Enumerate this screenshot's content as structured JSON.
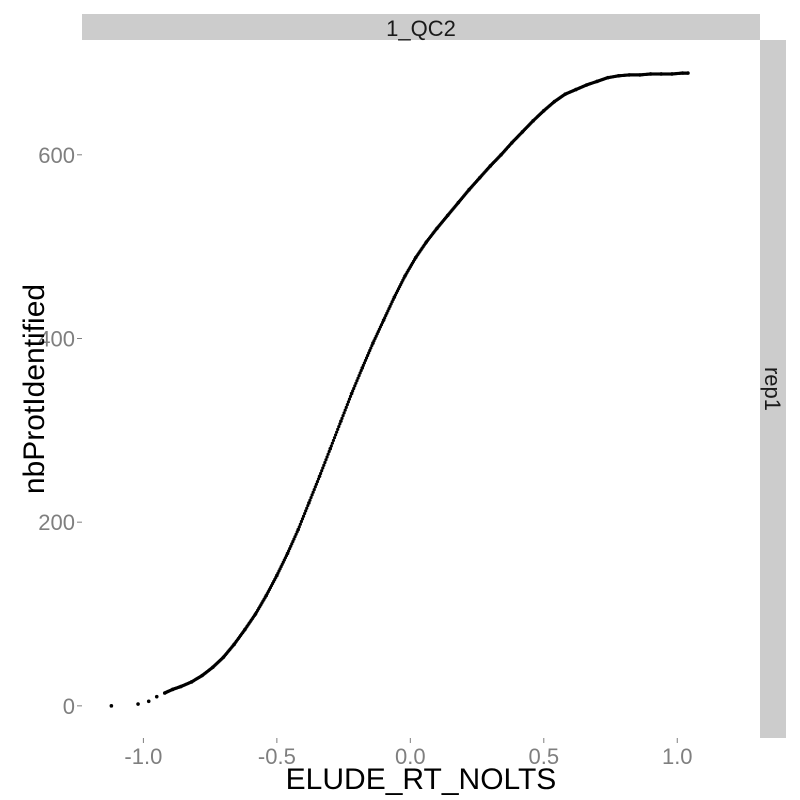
{
  "chart_data": {
    "type": "scatter",
    "title": "",
    "facet_column_label": "1_QC2",
    "facet_row_label": "rep1",
    "xlabel": "ELUDE_RT_NOLTS",
    "ylabel": "nbProtIdentified",
    "xlim": [
      -1.23,
      1.31
    ],
    "ylim": [
      -35,
      725
    ],
    "x_ticks": [
      -1.0,
      -0.5,
      0.0,
      0.5,
      1.0
    ],
    "x_tick_labels": [
      "-1.0",
      "-0.5",
      "0.0",
      "0.5",
      "1.0"
    ],
    "y_ticks": [
      0,
      200,
      400,
      600
    ],
    "y_tick_labels": [
      "0",
      "200",
      "400",
      "600"
    ],
    "grid": false,
    "legend": "none",
    "point_color": "#000000",
    "strip_color": "#cccccc",
    "series": [
      {
        "x": [
          -1.12,
          -1.02,
          -0.98,
          -0.95,
          -0.92,
          -0.89,
          -0.86,
          -0.82,
          -0.78,
          -0.74,
          -0.7,
          -0.66,
          -0.62,
          -0.58,
          -0.54,
          -0.5,
          -0.46,
          -0.42,
          -0.38,
          -0.34,
          -0.3,
          -0.26,
          -0.22,
          -0.18,
          -0.14,
          -0.1,
          -0.06,
          -0.02,
          0.02,
          0.06,
          0.1,
          0.14,
          0.18,
          0.22,
          0.26,
          0.3,
          0.34,
          0.38,
          0.42,
          0.46,
          0.5,
          0.54,
          0.58,
          0.62,
          0.66,
          0.7,
          0.74,
          0.78,
          0.82,
          0.86,
          0.9,
          0.94,
          0.98,
          1.02,
          1.04
        ],
        "y": [
          0,
          2,
          5,
          10,
          14,
          18,
          21,
          26,
          33,
          42,
          53,
          67,
          83,
          100,
          120,
          142,
          166,
          192,
          221,
          250,
          280,
          310,
          340,
          368,
          395,
          420,
          445,
          468,
          488,
          505,
          520,
          534,
          548,
          562,
          575,
          588,
          600,
          613,
          625,
          637,
          648,
          658,
          666,
          671,
          676,
          680,
          684,
          686,
          687,
          687,
          688,
          688,
          688,
          689,
          689
        ]
      }
    ]
  }
}
